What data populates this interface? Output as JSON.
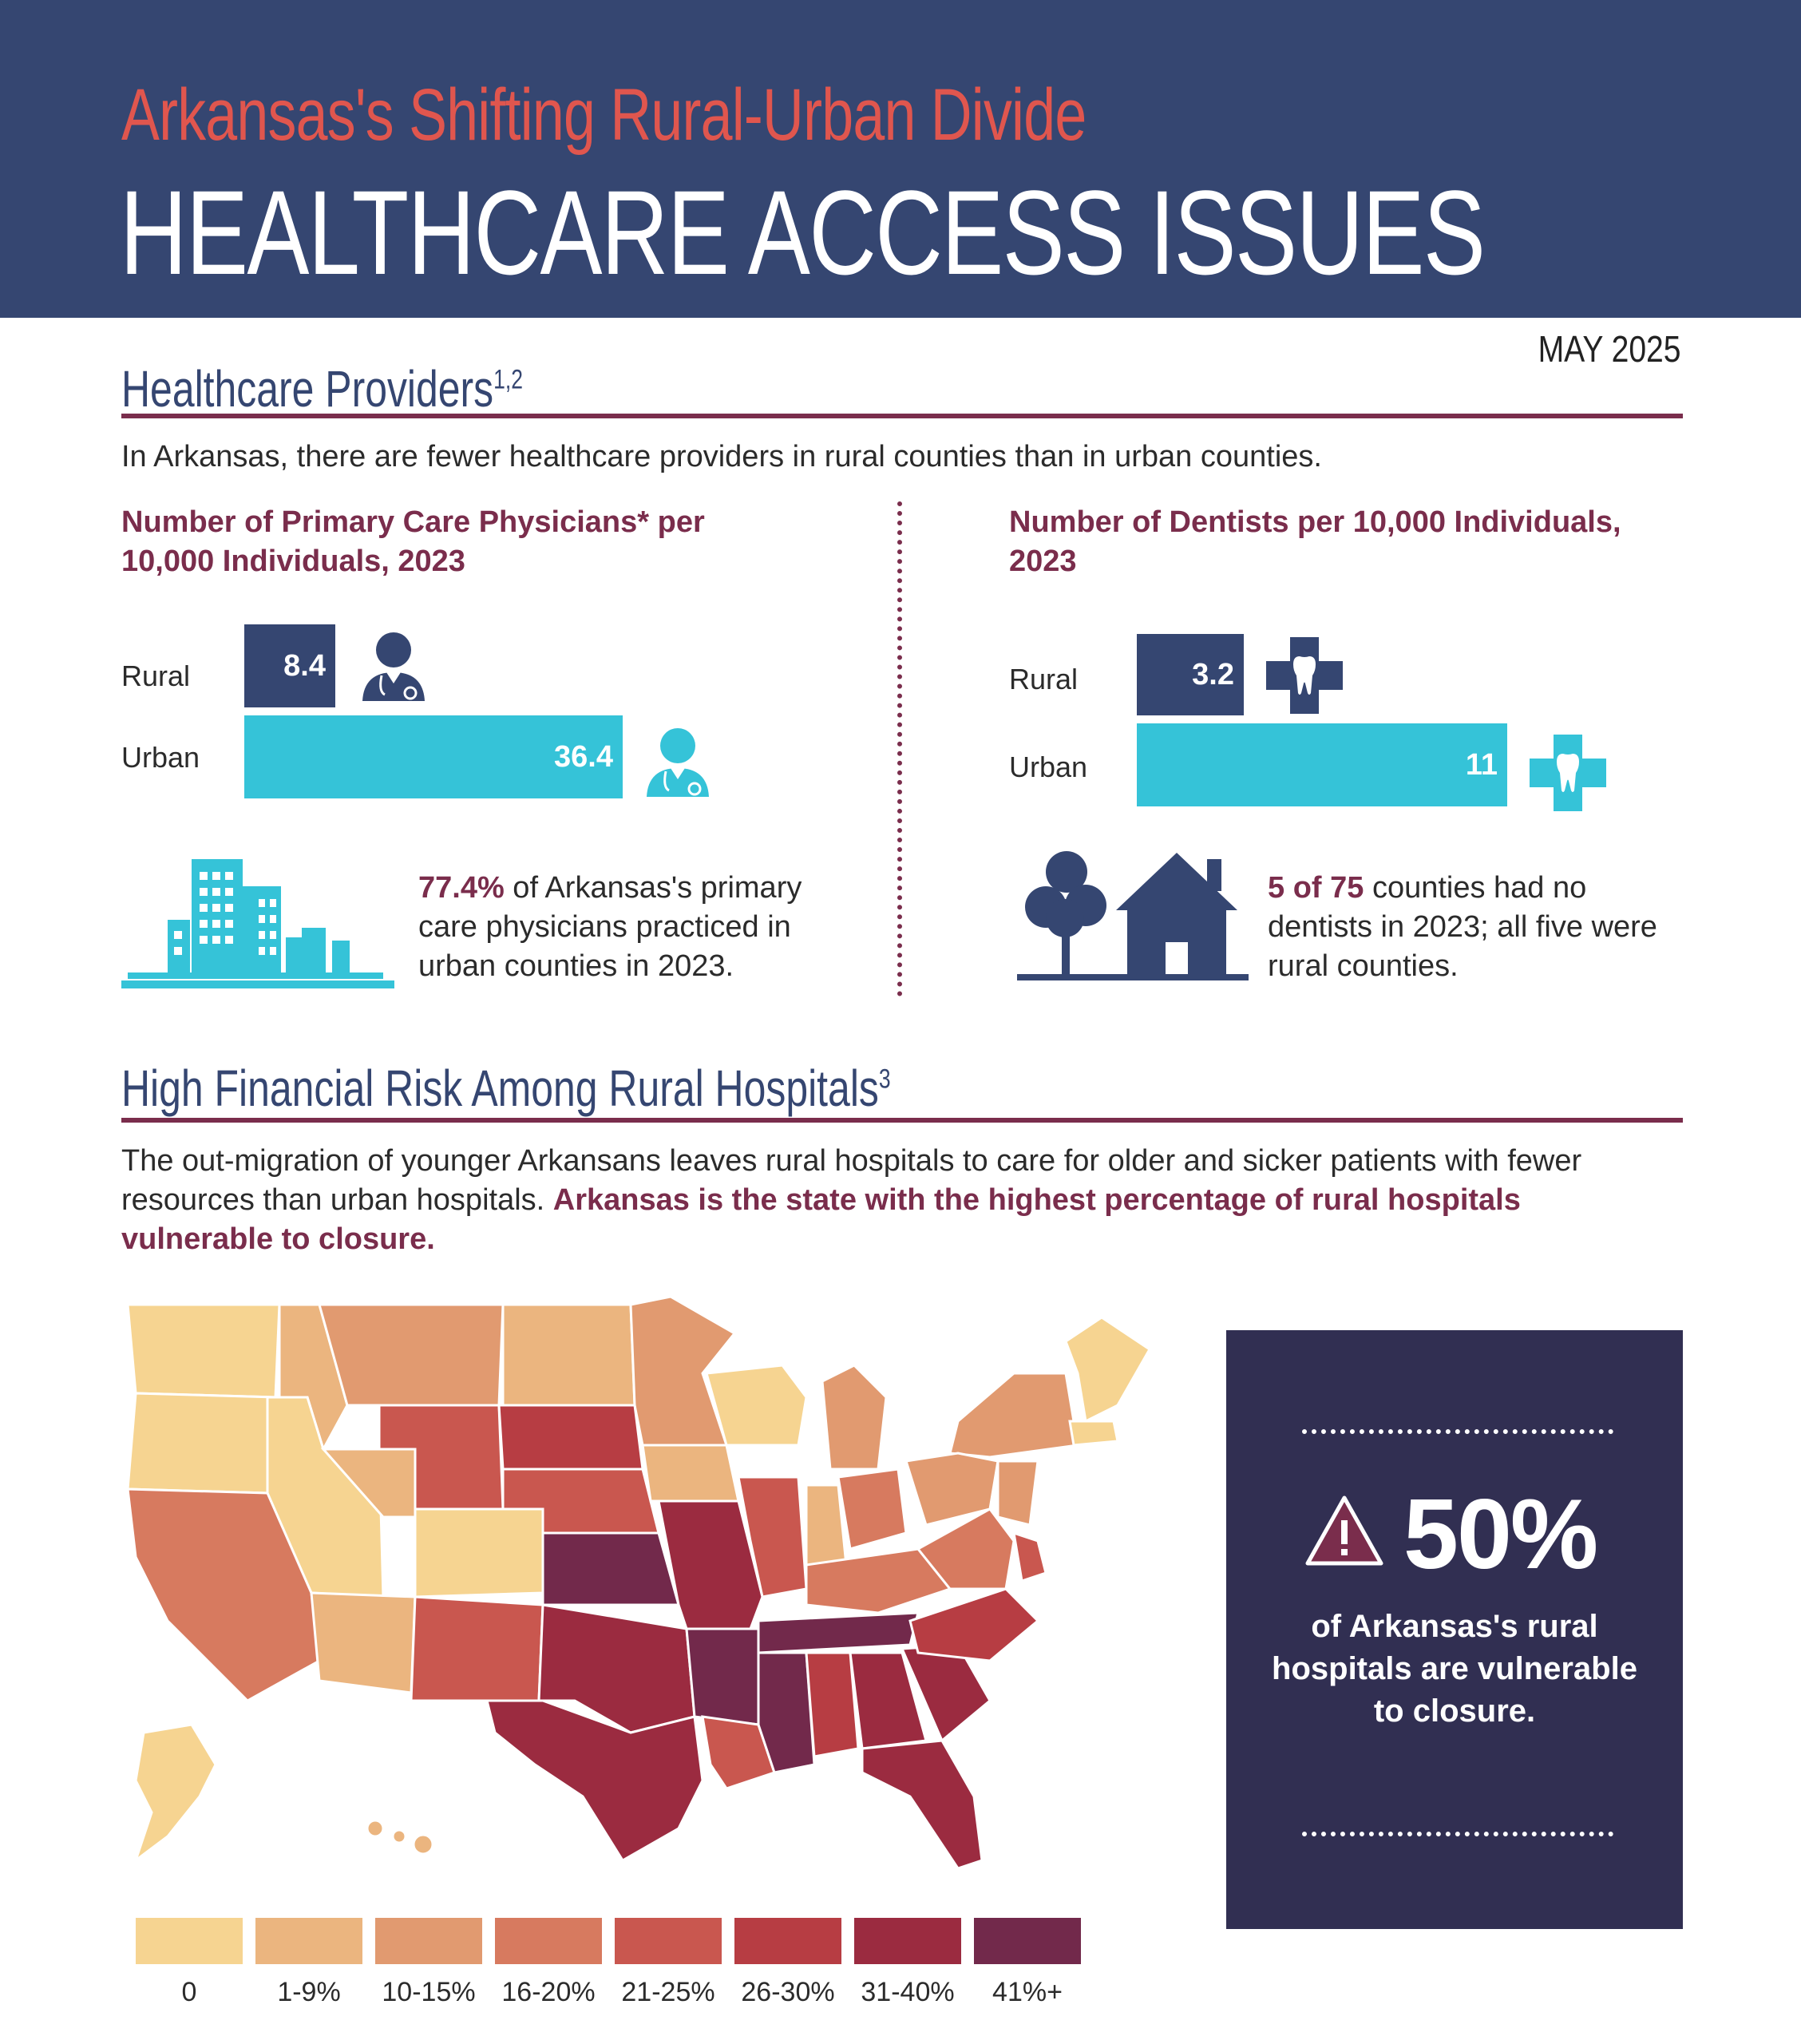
{
  "header": {
    "subtitle": "Arkansas's Shifting Rural-Urban Divide",
    "title": "HEALTHCARE ACCESS ISSUES",
    "date": "MAY 2025"
  },
  "providers": {
    "heading": "Healthcare Providers",
    "heading_sup": "1,2",
    "intro": "In Arkansas, there are fewer healthcare providers in rural counties than in urban counties."
  },
  "physicians": {
    "title": "Number of Primary Care Physicians* per 10,000 Individuals, 2023",
    "rural_label": "Rural",
    "urban_label": "Urban",
    "rural_value": "8.4",
    "urban_value": "36.4",
    "note_bold": "77.4%",
    "note_rest": " of Arkansas's primary care physicians practiced in urban counties in 2023."
  },
  "dentists": {
    "title": "Number of Dentists per 10,000 Individuals, 2023",
    "rural_label": "Rural",
    "urban_label": "Urban",
    "rural_value": "3.2",
    "urban_value": "11",
    "note_bold": "5 of 75",
    "note_rest": " counties had no dentists in 2023; all five were rural counties."
  },
  "hospitals": {
    "heading": "High Financial Risk Among Rural Hospitals",
    "heading_sup": "3",
    "intro_plain": "The out-migration of younger Arkansans leaves rural hospitals to care for older and sicker patients with fewer resources than urban hospitals. ",
    "intro_bold": "Arkansas is the state with the highest percentage of rural hospitals vulnerable to closure."
  },
  "callout": {
    "value": "50%",
    "text": "of Arkansas's rural hospitals are vulnerable to closure."
  },
  "legend": [
    {
      "label": "0",
      "color": "#f6d491"
    },
    {
      "label": "1-9%",
      "color": "#ebb57f"
    },
    {
      "label": "10-15%",
      "color": "#e19a70"
    },
    {
      "label": "16-20%",
      "color": "#d77a5f"
    },
    {
      "label": "21-25%",
      "color": "#c9574f"
    },
    {
      "label": "26-30%",
      "color": "#b73d43"
    },
    {
      "label": "31-40%",
      "color": "#9b2b40"
    },
    {
      "label": "41%+",
      "color": "#72294b"
    }
  ],
  "colors": {
    "navy": "#354671",
    "cyan": "#35c3d8",
    "maroon": "#7a2d4c",
    "coral": "#e0564e",
    "callout_bg": "#312f52"
  },
  "icons": [
    "doctor-icon",
    "city-icon",
    "tooth-cross-icon",
    "house-tree-icon",
    "warning-icon",
    "us-map"
  ]
}
